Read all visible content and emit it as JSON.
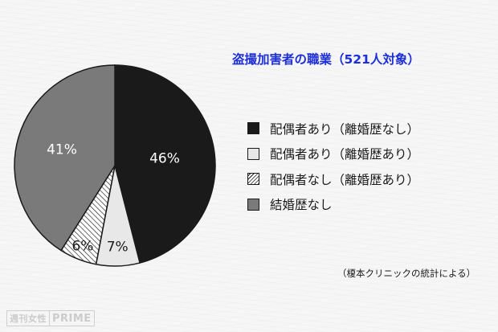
{
  "chart_data": {
    "type": "pie",
    "title": "盗撮加害者の職業（521人対象）",
    "slices": [
      {
        "label": "配偶者あり（離婚歴なし）",
        "value": 46,
        "value_label": "46%",
        "fill": "#1a1a1a",
        "pattern": "solid"
      },
      {
        "label": "配偶者あり（離婚歴あり）",
        "value": 7,
        "value_label": "7%",
        "fill": "#e8e8e8",
        "pattern": "solid"
      },
      {
        "label": "配偶者なし（離婚歴あり）",
        "value": 6,
        "value_label": "6%",
        "fill": "#ffffff",
        "pattern": "hatch"
      },
      {
        "label": "結婚歴なし",
        "value": 41,
        "value_label": "41%",
        "fill": "#7a7a7a",
        "pattern": "solid"
      }
    ],
    "start_angle": "12 o'clock",
    "direction": "clockwise",
    "legend_position": "right"
  },
  "source_note": "（榎本クリニックの統計による）",
  "watermark": {
    "part1": "週刊女性",
    "part2": "PRIME"
  },
  "colors": {
    "title": "#1d2fd6",
    "outline": "#1a1a1a"
  }
}
